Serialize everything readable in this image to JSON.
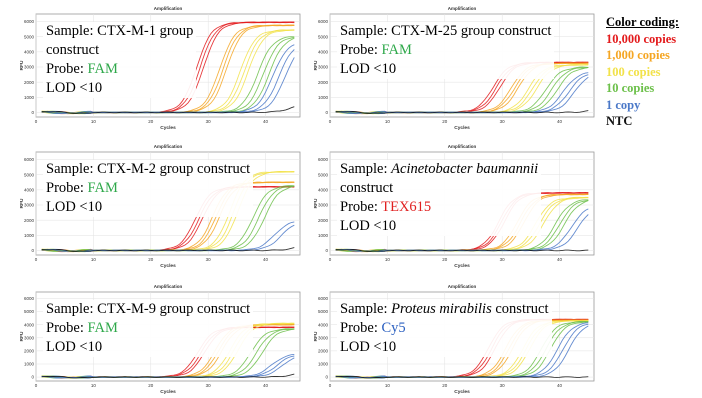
{
  "legend": {
    "title": "Color coding:",
    "items": [
      {
        "label": "10,000 copies",
        "color": "#e31a1c"
      },
      {
        "label": "1,000 copies",
        "color": "#f5a623"
      },
      {
        "label": "100 copies",
        "color": "#f2e24a"
      },
      {
        "label": "10 copies",
        "color": "#6cc04a"
      },
      {
        "label": "1 copy",
        "color": "#4a78c8"
      },
      {
        "label": "NTC",
        "color": "#111111"
      }
    ]
  },
  "chart_data": [
    {
      "type": "line",
      "title": "Amplification",
      "xlabel": "Cycles",
      "ylabel": "RFU",
      "xlim": [
        0,
        46
      ],
      "ylim": [
        -300,
        6500
      ],
      "xticks": [
        0,
        10,
        20,
        30,
        40
      ],
      "yticks": [
        0,
        1000,
        2000,
        3000,
        4000,
        5000,
        6000
      ],
      "annotation": {
        "sample_prefix": "Sample: ",
        "sample": "CTX-M-1 group",
        "sample_suffix": "",
        "sample_line2": "construct",
        "probe_prefix": "Probe: ",
        "probe": "FAM",
        "probe_color": "#2ea84a",
        "lod": "LOD <10"
      },
      "series": [
        {
          "color": "#e31a1c",
          "ct": [
            28.0,
            28.6,
            29.2
          ],
          "plateau": 5950
        },
        {
          "color": "#f5a623",
          "ct": [
            32.0,
            32.6,
            33.2
          ],
          "plateau": 5750
        },
        {
          "color": "#f2e24a",
          "ct": [
            35.6,
            36.3,
            37.0
          ],
          "plateau": 5450
        },
        {
          "color": "#6cc04a",
          "ct": [
            38.6,
            39.6,
            40.6
          ],
          "plateau": 5050
        },
        {
          "color": "#4a78c8",
          "ct": [
            41.2,
            42.3,
            43.4
          ],
          "plateau": 4700
        },
        {
          "color": "#111111",
          "ct": [
            44.5
          ],
          "plateau": 600
        }
      ]
    },
    {
      "type": "line",
      "title": "Amplification",
      "xlabel": "Cycles",
      "ylabel": "RFU",
      "xlim": [
        0,
        46
      ],
      "ylim": [
        -300,
        6500
      ],
      "xticks": [
        0,
        10,
        20,
        30,
        40
      ],
      "yticks": [
        0,
        1000,
        2000,
        3000,
        4000,
        5000,
        6000
      ],
      "annotation": {
        "sample_prefix": "Sample: ",
        "sample": "CTX-M-25 group construct",
        "sample_suffix": "",
        "sample_line2": "",
        "probe_prefix": "Probe: ",
        "probe": "FAM",
        "probe_color": "#2ea84a",
        "lod": "LOD <10"
      },
      "series": [
        {
          "color": "#e31a1c",
          "ct": [
            28.4,
            29.0,
            29.6
          ],
          "plateau": 3300
        },
        {
          "color": "#f5a623",
          "ct": [
            31.6,
            32.2,
            32.8
          ],
          "plateau": 3250
        },
        {
          "color": "#f2e24a",
          "ct": [
            34.6,
            35.3,
            36.0
          ],
          "plateau": 3150
        },
        {
          "color": "#6cc04a",
          "ct": [
            37.6,
            38.6,
            39.6
          ],
          "plateau": 3000
        },
        {
          "color": "#4a78c8",
          "ct": [
            40.6,
            41.6,
            42.6
          ],
          "plateau": 2700
        },
        {
          "color": "#111111",
          "ct": [
            46.0
          ],
          "plateau": 300
        }
      ]
    },
    {
      "type": "line",
      "title": "Amplification",
      "xlabel": "Cycles",
      "ylabel": "RFU",
      "xlim": [
        0,
        46
      ],
      "ylim": [
        -300,
        6500
      ],
      "xticks": [
        0,
        10,
        20,
        30,
        40
      ],
      "yticks": [
        0,
        1000,
        2000,
        3000,
        4000,
        5000,
        6000
      ],
      "annotation": {
        "sample_prefix": "Sample: ",
        "sample": "CTX-M-2 group  construct",
        "sample_suffix": "",
        "sample_line2": "",
        "probe_prefix": "Probe: ",
        "probe": "FAM",
        "probe_color": "#2ea84a",
        "lod": "LOD <10"
      },
      "series": [
        {
          "color": "#e31a1c",
          "ct": [
            27.8,
            28.4,
            29.0
          ],
          "plateau": 4200
        },
        {
          "color": "#f5a623",
          "ct": [
            30.8,
            31.4,
            32.0
          ],
          "plateau": 4500
        },
        {
          "color": "#f2e24a",
          "ct": [
            33.8,
            34.5,
            35.2
          ],
          "plateau": 5200
        },
        {
          "color": "#6cc04a",
          "ct": [
            37.8,
            38.8,
            39.8
          ],
          "plateau": 4300
        },
        {
          "color": "#4a78c8",
          "ct": [
            41.5,
            42.8
          ],
          "plateau": 2000
        },
        {
          "color": "#111111",
          "ct": [
            45.5
          ],
          "plateau": 400
        }
      ]
    },
    {
      "type": "line",
      "title": "Amplification",
      "xlabel": "Cycles",
      "ylabel": "RFU",
      "xlim": [
        0,
        46
      ],
      "ylim": [
        -300,
        6500
      ],
      "xticks": [
        0,
        10,
        20,
        30,
        40
      ],
      "yticks": [
        0,
        1000,
        2000,
        3000,
        4000,
        5000,
        6000
      ],
      "annotation": {
        "sample_prefix": "Sample: ",
        "sample": "Acinetobacter baumannii",
        "sample_italic": true,
        "sample_suffix": "",
        "sample_line2": "construct",
        "probe_prefix": "Probe: ",
        "probe": "TEX615",
        "probe_color": "#e02020",
        "lod": "LOD <10"
      },
      "series": [
        {
          "color": "#e31a1c",
          "ct": [
            29.4,
            29.9,
            30.4
          ],
          "plateau": 3800
        },
        {
          "color": "#f5a623",
          "ct": [
            32.6,
            33.2,
            33.8
          ],
          "plateau": 3700
        },
        {
          "color": "#f2e24a",
          "ct": [
            35.8,
            36.5,
            37.2
          ],
          "plateau": 3500
        },
        {
          "color": "#6cc04a",
          "ct": [
            39.2,
            40.0,
            40.8
          ],
          "plateau": 3400
        },
        {
          "color": "#4a78c8",
          "ct": [
            42.0,
            43.2
          ],
          "plateau": 3000
        },
        {
          "color": "#111111",
          "ct": [
            60.0
          ],
          "plateau": 0
        }
      ]
    },
    {
      "type": "line",
      "title": "Amplification",
      "xlabel": "Cycles",
      "ylabel": "RFU",
      "xlim": [
        0,
        46
      ],
      "ylim": [
        -300,
        6500
      ],
      "xticks": [
        0,
        10,
        20,
        30,
        40
      ],
      "yticks": [
        0,
        1000,
        2000,
        3000,
        4000,
        5000,
        6000
      ],
      "annotation": {
        "sample_prefix": "Sample: ",
        "sample": "CTX-M-9 group construct",
        "sample_suffix": "",
        "sample_line2": "",
        "probe_prefix": "Probe: ",
        "probe": "FAM",
        "probe_color": "#2ea84a",
        "lod": "LOD <10"
      },
      "series": [
        {
          "color": "#e31a1c",
          "ct": [
            28.2,
            28.8,
            29.4
          ],
          "plateau": 3800
        },
        {
          "color": "#f5a623",
          "ct": [
            31.2,
            31.8,
            32.4
          ],
          "plateau": 4000
        },
        {
          "color": "#f2e24a",
          "ct": [
            33.8,
            34.5,
            35.2
          ],
          "plateau": 4100
        },
        {
          "color": "#6cc04a",
          "ct": [
            37.4,
            38.4,
            39.4
          ],
          "plateau": 3700
        },
        {
          "color": "#4a78c8",
          "ct": [
            41.0,
            42.0,
            43.0
          ],
          "plateau": 1800
        },
        {
          "color": "#111111",
          "ct": [
            45.5
          ],
          "plateau": 500
        }
      ]
    },
    {
      "type": "line",
      "title": "Amplification",
      "xlabel": "Cycles",
      "ylabel": "RFU",
      "xlim": [
        0,
        46
      ],
      "ylim": [
        -300,
        6500
      ],
      "xticks": [
        0,
        10,
        20,
        30,
        40
      ],
      "yticks": [
        0,
        1000,
        2000,
        3000,
        4000,
        5000,
        6000
      ],
      "annotation": {
        "sample_prefix": "Sample: ",
        "sample": "Proteus mirabilis",
        "sample_italic": true,
        "sample_suffix": " construct",
        "sample_line2": "",
        "probe_prefix": "Probe: ",
        "probe": "Cy5",
        "probe_color": "#2a5fc0",
        "lod": "LOD <10"
      },
      "series": [
        {
          "color": "#e31a1c",
          "ct": [
            27.6,
            28.2,
            28.8
          ],
          "plateau": 4400
        },
        {
          "color": "#f5a623",
          "ct": [
            30.6,
            31.2,
            31.8
          ],
          "plateau": 4350
        },
        {
          "color": "#f2e24a",
          "ct": [
            33.6,
            34.2,
            34.8
          ],
          "plateau": 4300
        },
        {
          "color": "#6cc04a",
          "ct": [
            36.8,
            37.6,
            38.4
          ],
          "plateau": 4250
        },
        {
          "color": "#4a78c8",
          "ct": [
            39.6,
            40.6,
            41.6
          ],
          "plateau": 4200
        },
        {
          "color": "#111111",
          "ct": [
            60.0
          ],
          "plateau": 0
        }
      ]
    }
  ]
}
